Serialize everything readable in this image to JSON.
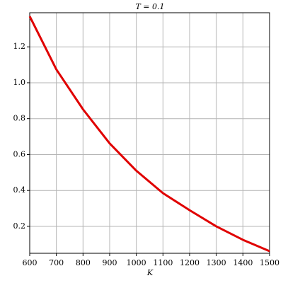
{
  "chart_data": {
    "type": "line",
    "title": "T = 0.1",
    "x_label": "K",
    "x": [
      600,
      700,
      800,
      900,
      1000,
      1100,
      1200,
      1300,
      1400,
      1500
    ],
    "series": [
      {
        "name": "T = 0.1",
        "color": "#e00000",
        "values": [
          1.37,
          1.074,
          0.852,
          0.662,
          0.51,
          0.385,
          0.29,
          0.2,
          0.125,
          0.062
        ]
      }
    ],
    "xlim": [
      600,
      1500
    ],
    "ylim": [
      0.05,
      1.39
    ],
    "xticks": [
      600,
      700,
      800,
      900,
      1000,
      1100,
      1200,
      1300,
      1400,
      1500
    ],
    "yticks": [
      0.2,
      0.4,
      0.6,
      0.8,
      {
        "value": 1.0,
        "label": "1.0"
      },
      1.2
    ],
    "grid": true
  }
}
